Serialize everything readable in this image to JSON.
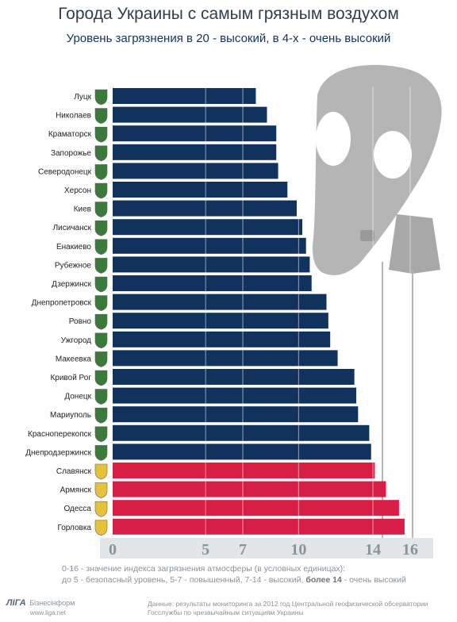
{
  "title": "Города Украины с самым грязным воздухом",
  "subtitle": "Уровень загрязнения в 20 - высокий, в 4-х - очень высокий",
  "legend": {
    "line1": "0-16 - значение индекса загрязнения атмосферы (в условных единицах):",
    "line2_a": "до 5 - безопасный уровень, 5-7 - повышенный, 7-14 - высокий,",
    "line2_b": "более 14",
    "line2_c": "- очень высокий"
  },
  "footer": {
    "logo_mark": "ЛIГА",
    "logo_name": "Бізнесінформ",
    "logo_url": "www.liga.net",
    "source_line1": "Данные: результаты мониторинга за 2012 год Центральной геофизической обсерватории",
    "source_line2": "Госслужбы по чрезвычайным ситуациям Украины"
  },
  "chart_data": {
    "type": "bar",
    "orientation": "horizontal",
    "xlim": [
      0,
      16.6
    ],
    "xticks": [
      0,
      5,
      7,
      10,
      14,
      16
    ],
    "grid": "vertical lines at 5, 7, 10, 14, 16",
    "colors": {
      "high": "#12325e",
      "very_high": "#d81e45"
    },
    "categories": [
      "Луцк",
      "Николаев",
      "Краматорск",
      "Запорожье",
      "Северодонецк",
      "Херсон",
      "Киев",
      "Лисичанск",
      "Енакиево",
      "Рубежное",
      "Дзержинск",
      "Днепропетровск",
      "Ровно",
      "Ужгород",
      "Макеевка",
      "Кривой Рог",
      "Донецк",
      "Мариуполь",
      "Красноперекопск",
      "Днепродзержинск",
      "Славянск",
      "Армянск",
      "Одесса",
      "Горловка"
    ],
    "values": [
      7.7,
      8.3,
      8.8,
      8.8,
      8.9,
      9.4,
      9.9,
      10.2,
      10.4,
      10.6,
      10.7,
      11.5,
      11.6,
      11.7,
      12.1,
      13.0,
      13.1,
      13.2,
      13.8,
      13.9,
      14.1,
      14.7,
      15.4,
      15.7
    ],
    "levels": [
      "high",
      "high",
      "high",
      "high",
      "high",
      "high",
      "high",
      "high",
      "high",
      "high",
      "high",
      "high",
      "high",
      "high",
      "high",
      "high",
      "high",
      "high",
      "high",
      "high",
      "very_high",
      "very_high",
      "very_high",
      "very_high"
    ]
  }
}
